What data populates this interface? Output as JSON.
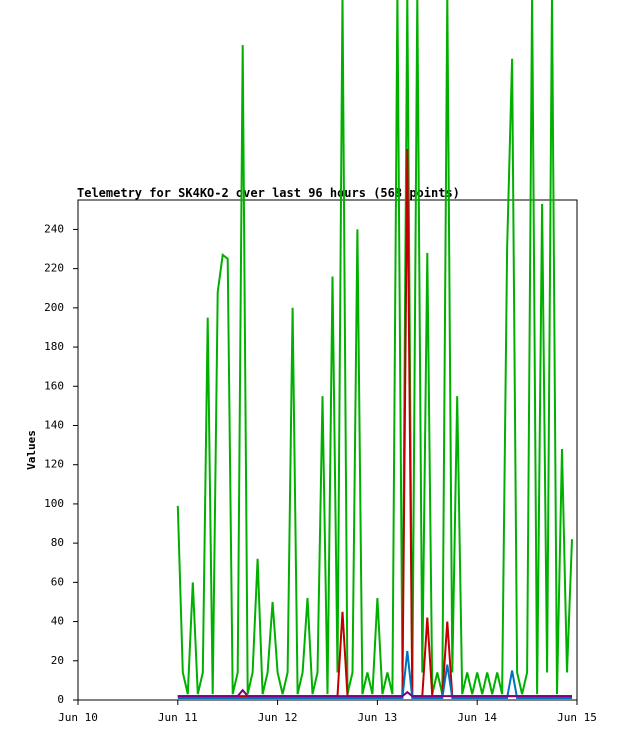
{
  "chart_data": {
    "type": "line",
    "title": "Telemetry for SK4KO-2 over last 96 hours (568 points)",
    "y_label": "Values",
    "x": [
      11.0,
      11.05,
      11.1,
      11.15,
      11.2,
      11.25,
      11.3,
      11.35,
      11.4,
      11.45,
      11.5,
      11.55,
      11.6,
      11.65,
      11.7,
      11.75,
      11.8,
      11.85,
      11.9,
      11.95,
      12.0,
      12.05,
      12.1,
      12.15,
      12.2,
      12.25,
      12.3,
      12.35,
      12.4,
      12.45,
      12.5,
      12.55,
      12.6,
      12.65,
      12.7,
      12.75,
      12.8,
      12.85,
      12.9,
      12.95,
      13.0,
      13.05,
      13.1,
      13.15,
      13.2,
      13.25,
      13.3,
      13.35,
      13.4,
      13.45,
      13.5,
      13.55,
      13.6,
      13.65,
      13.7,
      13.75,
      13.8,
      13.85,
      13.9,
      13.95,
      14.0,
      14.05,
      14.1,
      14.15,
      14.2,
      14.25,
      14.3,
      14.35,
      14.4,
      14.45,
      14.5,
      14.55,
      14.6,
      14.65,
      14.7,
      14.75,
      14.8,
      14.85,
      14.9,
      14.95
    ],
    "xlim": [
      10,
      15
    ],
    "xticks": [
      {
        "value": 10,
        "label": "Jun 10"
      },
      {
        "value": 11,
        "label": "Jun 11"
      },
      {
        "value": 12,
        "label": "Jun 12"
      },
      {
        "value": 13,
        "label": "Jun 13"
      },
      {
        "value": 14,
        "label": "Jun 14"
      },
      {
        "value": 15,
        "label": "Jun 15"
      }
    ],
    "ylim": [
      0,
      255
    ],
    "yticks": [
      0,
      20,
      40,
      60,
      80,
      100,
      120,
      140,
      160,
      180,
      200,
      220,
      240
    ],
    "series": [
      {
        "color": "#00b000",
        "values": [
          99,
          14,
          3,
          60,
          3,
          14,
          195,
          3,
          208,
          227,
          225,
          3,
          14,
          334,
          3,
          14,
          72,
          3,
          14,
          50,
          14,
          3,
          14,
          200,
          3,
          14,
          52,
          3,
          14,
          155,
          3,
          216,
          14,
          360,
          3,
          14,
          240,
          3,
          14,
          3,
          52,
          3,
          14,
          3,
          360,
          14,
          360,
          3,
          360,
          14,
          228,
          3,
          14,
          3,
          360,
          14,
          155,
          3,
          14,
          3,
          14,
          3,
          14,
          3,
          14,
          3,
          230,
          327,
          14,
          3,
          14,
          360,
          3,
          253,
          14,
          360,
          3,
          128,
          14,
          82
        ]
      },
      {
        "color": "#c00000",
        "values": [
          2,
          2,
          2,
          2,
          2,
          2,
          2,
          2,
          2,
          2,
          2,
          2,
          2,
          2,
          2,
          2,
          2,
          2,
          2,
          2,
          2,
          2,
          2,
          2,
          2,
          2,
          2,
          2,
          2,
          2,
          2,
          2,
          2,
          45,
          2,
          2,
          2,
          2,
          2,
          2,
          2,
          2,
          2,
          2,
          2,
          2,
          281,
          2,
          2,
          2,
          42,
          2,
          2,
          2,
          40,
          2,
          2,
          2,
          2,
          2,
          2,
          2,
          2,
          2,
          2,
          2,
          2,
          2,
          2,
          2,
          2,
          2,
          2,
          2,
          2,
          2,
          2,
          2,
          2,
          2
        ]
      },
      {
        "color": "#0070c0",
        "values": [
          1,
          1,
          1,
          1,
          1,
          1,
          1,
          1,
          1,
          1,
          1,
          1,
          1,
          1,
          1,
          1,
          1,
          1,
          1,
          1,
          1,
          1,
          1,
          1,
          1,
          1,
          1,
          1,
          1,
          1,
          1,
          1,
          1,
          1,
          1,
          1,
          1,
          1,
          1,
          1,
          1,
          1,
          1,
          1,
          1,
          1,
          25,
          1,
          1,
          1,
          1,
          1,
          1,
          1,
          18,
          1,
          1,
          1,
          1,
          1,
          1,
          1,
          1,
          1,
          1,
          1,
          1,
          15,
          1,
          1,
          1,
          1,
          1,
          1,
          1,
          1,
          1,
          1,
          1,
          1
        ]
      },
      {
        "color": "#800080",
        "values": [
          2,
          2,
          2,
          2,
          2,
          2,
          2,
          2,
          2,
          2,
          2,
          2,
          2,
          5,
          2,
          2,
          2,
          2,
          2,
          2,
          2,
          2,
          2,
          2,
          2,
          2,
          2,
          2,
          2,
          2,
          2,
          2,
          2,
          2,
          2,
          2,
          2,
          2,
          2,
          2,
          2,
          2,
          2,
          2,
          2,
          2,
          4,
          2,
          2,
          2,
          2,
          2,
          2,
          2,
          2,
          2,
          2,
          2,
          2,
          2,
          2,
          2,
          2,
          2,
          2,
          2,
          2,
          2,
          2,
          2,
          2,
          2,
          2,
          2,
          2,
          2,
          2,
          2,
          2,
          2
        ]
      }
    ]
  }
}
